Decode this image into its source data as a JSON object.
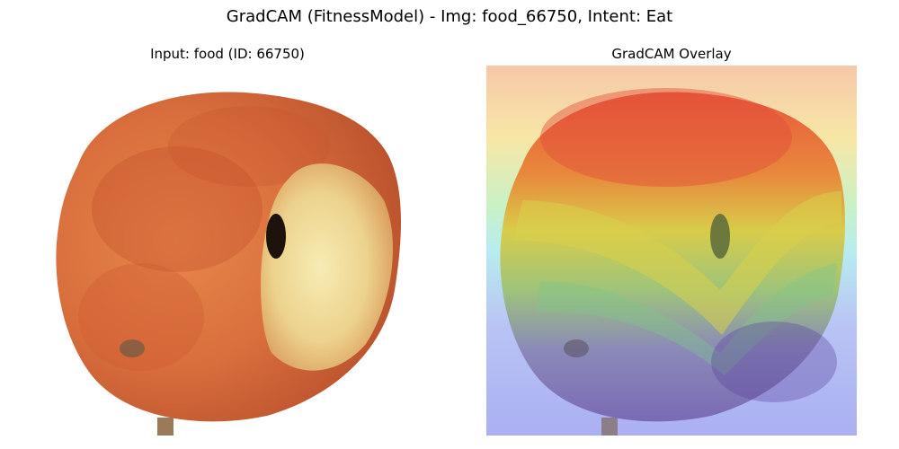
{
  "figure": {
    "title": "GradCAM (FitnessModel) - Img: food_66750, Intent: Eat"
  },
  "panels": [
    {
      "title": "Input: food (ID: 66750)",
      "subject": "peach",
      "colors": {
        "fruit_base": "#e0854a",
        "fruit_red": "#c9502e",
        "flesh": "#f2e3a0",
        "background": "#ffffff"
      }
    },
    {
      "title": "GradCAM Overlay",
      "colormap": "jet",
      "colors": {
        "high": "#e84e3c",
        "mid": "#e8d24a",
        "low": "#7a6ed8",
        "cyan": "#9fe7d6"
      }
    }
  ]
}
